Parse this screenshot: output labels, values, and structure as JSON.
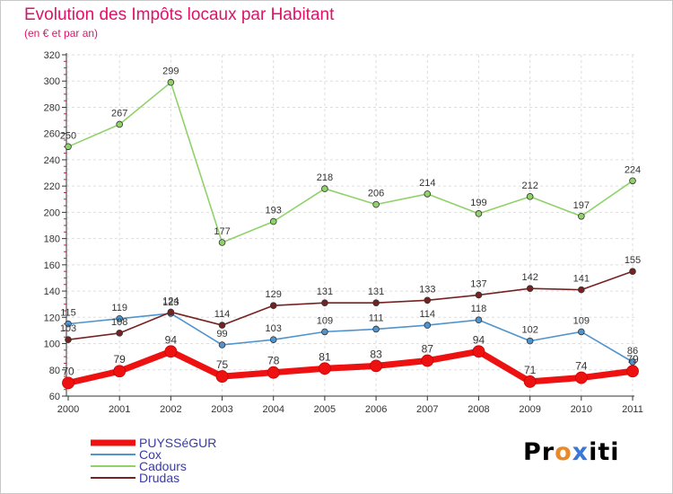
{
  "chart_data": {
    "type": "line",
    "title": "Evolution des Impôts locaux par Habitant",
    "subtitle": "(en € et par an)",
    "xlabel": "",
    "ylabel": "",
    "x": [
      "2000",
      "2001",
      "2002",
      "2003",
      "2004",
      "2005",
      "2006",
      "2007",
      "2008",
      "2009",
      "2010",
      "2011"
    ],
    "ylim": [
      60,
      320
    ],
    "yticks": [
      60,
      80,
      100,
      120,
      140,
      160,
      180,
      200,
      220,
      240,
      260,
      280,
      300,
      320
    ],
    "grid": true,
    "legend_position": "bottom-left",
    "series": [
      {
        "name": "Cox",
        "color": "#4f94cd",
        "values": [
          115,
          119,
          123,
          99,
          103,
          109,
          111,
          114,
          118,
          102,
          109,
          86
        ]
      },
      {
        "name": "Cadours",
        "color": "#8fd26a",
        "values": [
          250,
          267,
          299,
          177,
          193,
          218,
          206,
          214,
          199,
          212,
          197,
          224
        ]
      },
      {
        "name": "Drudas",
        "color": "#772222",
        "values": [
          103,
          108,
          124,
          114,
          129,
          131,
          131,
          133,
          137,
          142,
          141,
          155
        ]
      },
      {
        "name": "PUYSSéGUR",
        "color": "#ee1111",
        "values": [
          70,
          79,
          94,
          75,
          78,
          81,
          83,
          87,
          94,
          71,
          74,
          79
        ]
      }
    ],
    "legend_order": [
      "PUYSSéGUR",
      "Cox",
      "Cadours",
      "Drudas"
    ]
  },
  "colors": {
    "title": "#e0116a",
    "axis": "#333333",
    "grid": "#dddddd",
    "legend_text": "#3a3aa8",
    "minor_tick": "#cc1a4a"
  },
  "brand": {
    "part1": "Pr",
    "part2": "o",
    "part3": "x",
    "part4": "iti"
  }
}
